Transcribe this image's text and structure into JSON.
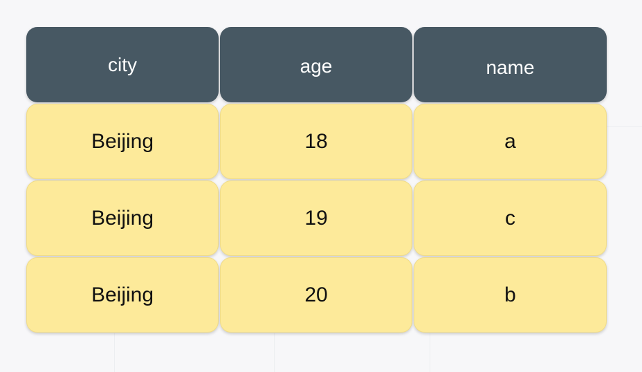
{
  "table": {
    "columns": [
      "city",
      "age",
      "name"
    ],
    "rows": [
      [
        "Beijing",
        "18",
        "a"
      ],
      [
        "Beijing",
        "19",
        "c"
      ],
      [
        "Beijing",
        "20",
        "b"
      ]
    ]
  },
  "colors": {
    "header_background": "#475863",
    "header_text": "#ffffff",
    "cell_background": "#fdea9a",
    "cell_text": "#111111",
    "canvas_background": "#f7f7f9"
  }
}
